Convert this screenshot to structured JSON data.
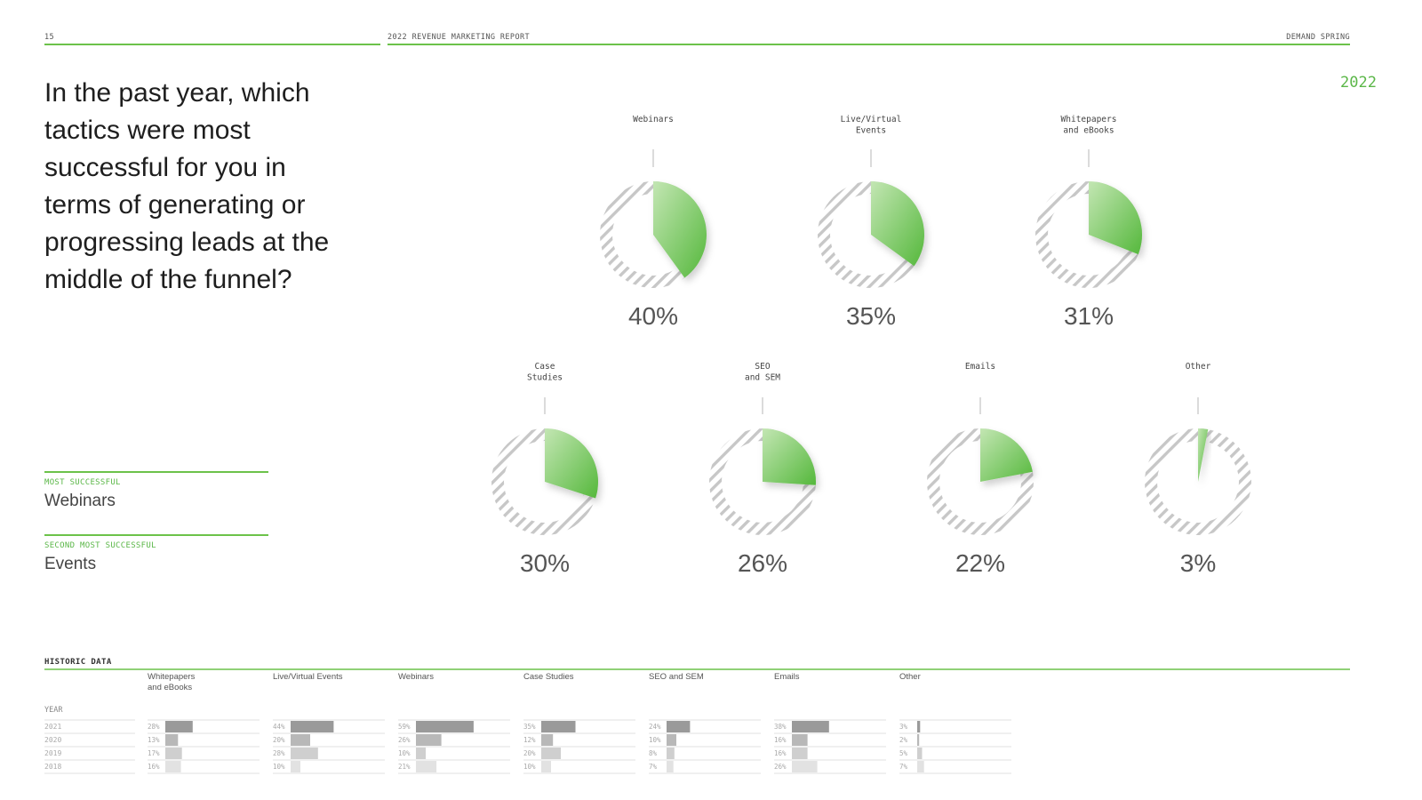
{
  "header": {
    "page_number": "15",
    "report_title": "2022 REVENUE MARKETING REPORT",
    "brand": "DEMAND SPRING"
  },
  "year_label": "2022",
  "question": "In the past year, which tactics were most successful for you in terms of generating or progressing leads at the middle of the funnel?",
  "callouts": {
    "most_label": "MOST SUCCESSFUL",
    "most_value": "Webinars",
    "second_label": "SECOND MOST SUCCESSFUL",
    "second_value": "Events"
  },
  "colors": {
    "accent": "#6cc24a",
    "pie_light": "#b9e2a6",
    "pie_dark": "#5cbb45",
    "hatch": "#c7c7c7",
    "bar_2021": "#9a9a9a",
    "bar_2020": "#b8b8b8",
    "bar_2019": "#cfcfcf",
    "bar_2018": "#e2e2e2"
  },
  "chart_data": [
    {
      "type": "pie",
      "title": "",
      "items": [
        {
          "label": [
            "Webinars"
          ],
          "value": 40,
          "display": "40%"
        },
        {
          "label": [
            "Live/Virtual",
            "Events"
          ],
          "value": 35,
          "display": "35%"
        },
        {
          "label": [
            "Whitepapers",
            "and eBooks"
          ],
          "value": 31,
          "display": "31%"
        },
        {
          "label": [
            "Case",
            "Studies"
          ],
          "value": 30,
          "display": "30%"
        },
        {
          "label": [
            "SEO",
            "and SEM"
          ],
          "value": 26,
          "display": "26%"
        },
        {
          "label": [
            "Emails"
          ],
          "value": 22,
          "display": "22%"
        },
        {
          "label": [
            "Other"
          ],
          "value": 3,
          "display": "3%"
        }
      ]
    },
    {
      "type": "bar",
      "title": "HISTORIC DATA",
      "year_header": "YEAR",
      "years": [
        "2021",
        "2020",
        "2019",
        "2018"
      ],
      "groups": [
        {
          "name": [
            "Whitepapers",
            "and eBooks"
          ],
          "values": [
            28,
            13,
            17,
            16
          ]
        },
        {
          "name": [
            "Live/Virtual Events"
          ],
          "values": [
            44,
            20,
            28,
            10
          ]
        },
        {
          "name": [
            "Webinars"
          ],
          "values": [
            59,
            26,
            10,
            21
          ]
        },
        {
          "name": [
            "Case Studies"
          ],
          "values": [
            35,
            12,
            20,
            10
          ]
        },
        {
          "name": [
            "SEO and SEM"
          ],
          "values": [
            24,
            10,
            8,
            7
          ]
        },
        {
          "name": [
            "Emails"
          ],
          "values": [
            38,
            16,
            16,
            26
          ]
        },
        {
          "name": [
            "Other"
          ],
          "values": [
            3,
            2,
            5,
            7
          ]
        }
      ]
    }
  ]
}
